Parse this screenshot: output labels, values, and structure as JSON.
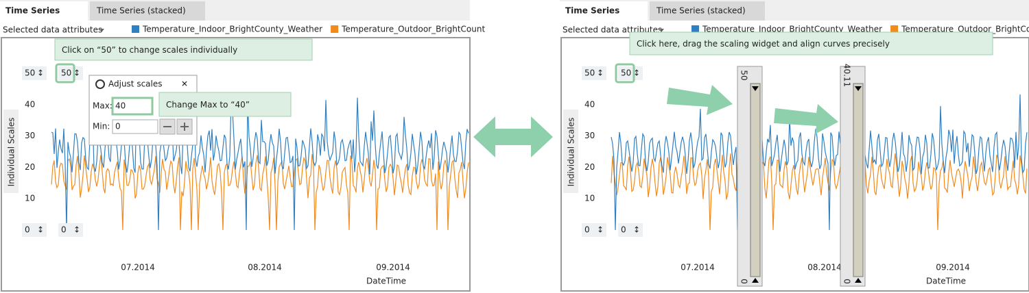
{
  "panels": [
    {
      "tabs": [
        "Time Series",
        "Time Series (stacked)"
      ],
      "attributes_label": "Selected data attributes",
      "legend": [
        {
          "name": "Temperature_Indoor_BrightCounty_Weather",
          "color": "#2f7fc1"
        },
        {
          "name": "Temperature_Outdoor_BrightCount",
          "color": "#f28a1c"
        }
      ],
      "axis_title": "Individual Scales",
      "scale_labels": [
        "50",
        "50",
        "0",
        "0"
      ],
      "y_ticks": [
        "40",
        "30",
        "20",
        "10"
      ],
      "x_ticks": [
        "07.2014",
        "08.2014",
        "09.2014"
      ],
      "x_title": "DateTime",
      "callouts": [
        "Click on “50” to change scales individually",
        "Change Max to “40”"
      ],
      "dialog": {
        "title": "Adjust scales",
        "max_label": "Max:",
        "max_value": "40",
        "min_label": "Min:",
        "min_value": "0"
      }
    },
    {
      "tabs": [
        "Time Series",
        "Time Series (stacked)"
      ],
      "attributes_label": "Selected data attributes",
      "legend": [
        {
          "name": "Temperature_Indoor_BrightCounty_Weather",
          "color": "#2f7fc1"
        },
        {
          "name": "Temperature_Outdoor_BrightCount",
          "color": "#f28a1c"
        }
      ],
      "axis_title": "Individual Scales",
      "scale_labels": [
        "50",
        "50",
        "0",
        "0"
      ],
      "y_ticks": [
        "40",
        "30",
        "20",
        "10"
      ],
      "x_ticks": [
        "07.2014",
        "08.2014",
        "09.2014"
      ],
      "x_title": "DateTime",
      "callouts": [
        "Click here, drag the scaling widget and align curves precisely"
      ],
      "widgets": [
        {
          "top": "50",
          "bottom": "0"
        },
        {
          "top": "40.11",
          "bottom": "0"
        }
      ]
    }
  ]
}
